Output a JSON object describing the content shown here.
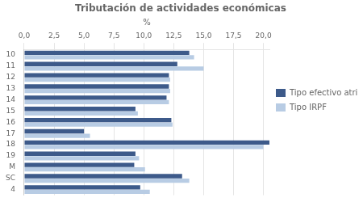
{
  "chart_data": {
    "type": "bar",
    "title": "Tributación de actividades económicas",
    "xlabel": "%",
    "orientation": "horizontal",
    "categories": [
      "10",
      "11",
      "12",
      "13",
      "14",
      "15",
      "16",
      "17",
      "18",
      "19",
      "M",
      "SC",
      "4"
    ],
    "series": [
      {
        "name": "Tipo efectivo atribuible",
        "color": "#3D5A8A",
        "values": [
          13.8,
          12.8,
          12.1,
          12.1,
          11.9,
          9.3,
          12.3,
          5.0,
          20.5,
          9.3,
          9.2,
          13.2,
          9.7
        ]
      },
      {
        "name": "Tipo IRPF",
        "color": "#B8CCE4",
        "values": [
          14.2,
          15.0,
          12.2,
          12.2,
          12.1,
          9.5,
          12.4,
          5.5,
          20.0,
          9.6,
          10.1,
          13.8,
          10.5
        ]
      }
    ],
    "xlim": [
      0,
      20.5
    ],
    "xticks": [
      {
        "value": 0.0,
        "label": "0,0"
      },
      {
        "value": 2.5,
        "label": "2,5"
      },
      {
        "value": 5.0,
        "label": "5,0"
      },
      {
        "value": 7.5,
        "label": "7,5"
      },
      {
        "value": 10.0,
        "label": "10,0"
      },
      {
        "value": 12.5,
        "label": "12,5"
      },
      {
        "value": 15.0,
        "label": "15,0"
      },
      {
        "value": 17.5,
        "label": "17,5"
      },
      {
        "value": 20.0,
        "label": "20,0"
      }
    ],
    "grid": true,
    "legend": "right"
  }
}
